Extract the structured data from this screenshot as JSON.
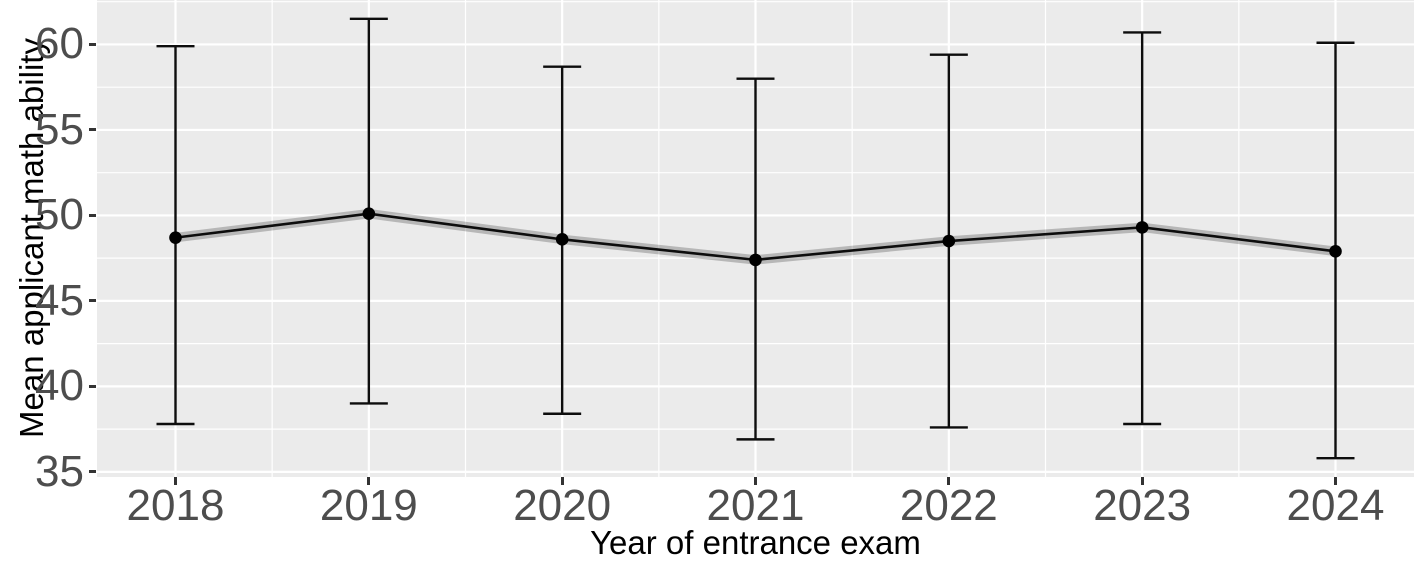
{
  "chart_data": {
    "type": "line",
    "title": "",
    "xlabel": "Year of entrance exam",
    "ylabel": "Mean applicant math ability",
    "categories": [
      "2018",
      "2019",
      "2020",
      "2021",
      "2022",
      "2023",
      "2024"
    ],
    "series": [
      {
        "name": "mean",
        "values": [
          48.7,
          50.1,
          48.6,
          47.4,
          48.5,
          49.3,
          47.9
        ]
      },
      {
        "name": "error_upper",
        "values": [
          59.9,
          61.5,
          58.7,
          58.0,
          59.4,
          60.7,
          60.1
        ]
      },
      {
        "name": "error_lower",
        "values": [
          37.8,
          39.0,
          38.4,
          36.9,
          37.6,
          37.8,
          35.8
        ]
      }
    ],
    "ribbon_half_width": 0.28,
    "ylim": [
      34.7,
      62.6
    ],
    "y_ticks": [
      60,
      55,
      50,
      45,
      40,
      35
    ],
    "y_minor_ticks": [
      62.5,
      57.5,
      52.5,
      47.5,
      42.5,
      37.5
    ],
    "grid": "on",
    "legend": "none",
    "marker": "point",
    "error_bars": "caps",
    "colors": {
      "panel_background": "#EBEBEB",
      "grid_major": "#FFFFFF",
      "grid_minor": "#FFFFFF",
      "line": "#0D0D0D",
      "point": "#000000",
      "error_bar": "#0D0D0D",
      "ribbon": "#000000",
      "ribbon_opacity": 0.22,
      "tick_label": "#4D4D4D",
      "axis_title": "#000000",
      "tick_mark": "#333333"
    }
  }
}
